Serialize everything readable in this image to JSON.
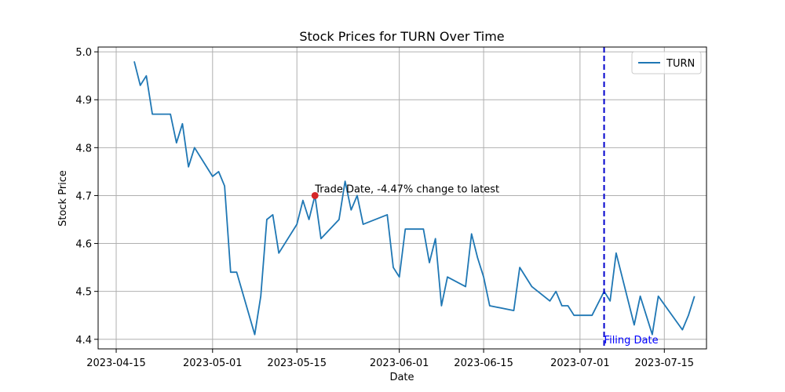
{
  "chart_data": {
    "type": "line",
    "title": "Stock Prices for TURN Over Time",
    "xlabel": "Date",
    "ylabel": "Stock Price",
    "x_range": [
      "2023-04-12",
      "2023-07-22"
    ],
    "ylim": [
      4.38,
      5.01
    ],
    "x_ticks": [
      "2023-04-15",
      "2023-05-01",
      "2023-05-15",
      "2023-06-01",
      "2023-06-15",
      "2023-07-01",
      "2023-07-15"
    ],
    "y_ticks": [
      "4.4",
      "4.5",
      "4.6",
      "4.7",
      "4.8",
      "4.9",
      "5.0"
    ],
    "grid": true,
    "legend_position": "top-right",
    "series": [
      {
        "name": "TURN",
        "color": "#1f77b4",
        "points": [
          [
            "2023-04-18",
            4.98
          ],
          [
            "2023-04-19",
            4.93
          ],
          [
            "2023-04-20",
            4.95
          ],
          [
            "2023-04-21",
            4.87
          ],
          [
            "2023-04-24",
            4.87
          ],
          [
            "2023-04-25",
            4.81
          ],
          [
            "2023-04-26",
            4.85
          ],
          [
            "2023-04-27",
            4.76
          ],
          [
            "2023-04-28",
            4.8
          ],
          [
            "2023-05-01",
            4.74
          ],
          [
            "2023-05-02",
            4.75
          ],
          [
            "2023-05-03",
            4.72
          ],
          [
            "2023-05-04",
            4.54
          ],
          [
            "2023-05-05",
            4.54
          ],
          [
            "2023-05-08",
            4.41
          ],
          [
            "2023-05-09",
            4.49
          ],
          [
            "2023-05-10",
            4.65
          ],
          [
            "2023-05-11",
            4.66
          ],
          [
            "2023-05-12",
            4.58
          ],
          [
            "2023-05-15",
            4.64
          ],
          [
            "2023-05-16",
            4.69
          ],
          [
            "2023-05-17",
            4.65
          ],
          [
            "2023-05-18",
            4.7
          ],
          [
            "2023-05-19",
            4.61
          ],
          [
            "2023-05-22",
            4.65
          ],
          [
            "2023-05-23",
            4.73
          ],
          [
            "2023-05-24",
            4.67
          ],
          [
            "2023-05-25",
            4.7
          ],
          [
            "2023-05-26",
            4.64
          ],
          [
            "2023-05-30",
            4.66
          ],
          [
            "2023-05-31",
            4.55
          ],
          [
            "2023-06-01",
            4.53
          ],
          [
            "2023-06-02",
            4.63
          ],
          [
            "2023-06-05",
            4.63
          ],
          [
            "2023-06-06",
            4.56
          ],
          [
            "2023-06-07",
            4.61
          ],
          [
            "2023-06-08",
            4.47
          ],
          [
            "2023-06-09",
            4.53
          ],
          [
            "2023-06-12",
            4.51
          ],
          [
            "2023-06-13",
            4.62
          ],
          [
            "2023-06-14",
            4.57
          ],
          [
            "2023-06-15",
            4.53
          ],
          [
            "2023-06-16",
            4.47
          ],
          [
            "2023-06-20",
            4.46
          ],
          [
            "2023-06-21",
            4.55
          ],
          [
            "2023-06-23",
            4.51
          ],
          [
            "2023-06-26",
            4.48
          ],
          [
            "2023-06-27",
            4.5
          ],
          [
            "2023-06-28",
            4.47
          ],
          [
            "2023-06-29",
            4.47
          ],
          [
            "2023-06-30",
            4.45
          ],
          [
            "2023-07-03",
            4.45
          ],
          [
            "2023-07-05",
            4.5
          ],
          [
            "2023-07-06",
            4.48
          ],
          [
            "2023-07-07",
            4.58
          ],
          [
            "2023-07-10",
            4.43
          ],
          [
            "2023-07-11",
            4.49
          ],
          [
            "2023-07-13",
            4.41
          ],
          [
            "2023-07-14",
            4.49
          ],
          [
            "2023-07-18",
            4.42
          ],
          [
            "2023-07-19",
            4.45
          ],
          [
            "2023-07-20",
            4.49
          ]
        ]
      }
    ],
    "annotations": [
      {
        "kind": "marker",
        "x": "2023-05-18",
        "y": 4.7,
        "color": "#d62728",
        "text": "Trade Date, -4.47% change to latest"
      },
      {
        "kind": "vline",
        "x": "2023-07-05",
        "color": "#0000cd",
        "style": "dashed",
        "text": "Filing Date",
        "text_color": "#0000ff"
      }
    ]
  }
}
